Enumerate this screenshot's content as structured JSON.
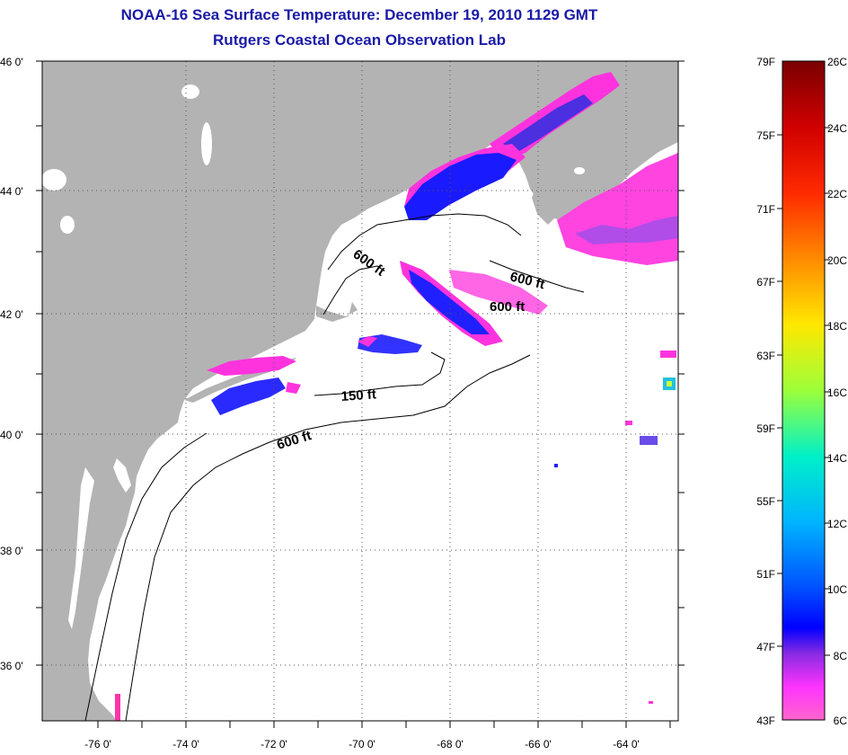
{
  "title": {
    "line1": "NOAA-16 Sea Surface Temperature:  December 19, 2010 1129 GMT",
    "line2": "Rutgers Coastal Ocean Observation Lab"
  },
  "map": {
    "lat_labels": [
      "46 0'",
      "44 0'",
      "42 0'",
      "40 0'",
      "38 0'",
      "36 0'"
    ],
    "lon_labels": [
      "-76 0'",
      "-74 0'",
      "-72 0'",
      "-70 0'",
      "-68 0'",
      "-66 0'",
      "-64 0'"
    ],
    "contour_labels": [
      "600 ft",
      "600 ft",
      "600 ft",
      "150 ft",
      "600 ft"
    ],
    "colors": {
      "land": "#b3b3b3",
      "ocean": "#ffffff",
      "grid": "#555555"
    }
  },
  "colorbar": {
    "fahrenheit_labels": [
      "79F",
      "75F",
      "71F",
      "67F",
      "63F",
      "59F",
      "55F",
      "51F",
      "47F",
      "43F"
    ],
    "celsius_labels": [
      "26C",
      "24C",
      "22C",
      "20C",
      "18C",
      "16C",
      "14C",
      "12C",
      "10C",
      "8C",
      "6C"
    ],
    "gradient_colors": [
      "#7a0000",
      "#d00000",
      "#ff2a00",
      "#ff8a00",
      "#ffe800",
      "#9cff3a",
      "#00f0c8",
      "#00b4ff",
      "#0050ff",
      "#0000ff",
      "#8a2be2",
      "#ff33ff",
      "#ff66cc"
    ]
  }
}
